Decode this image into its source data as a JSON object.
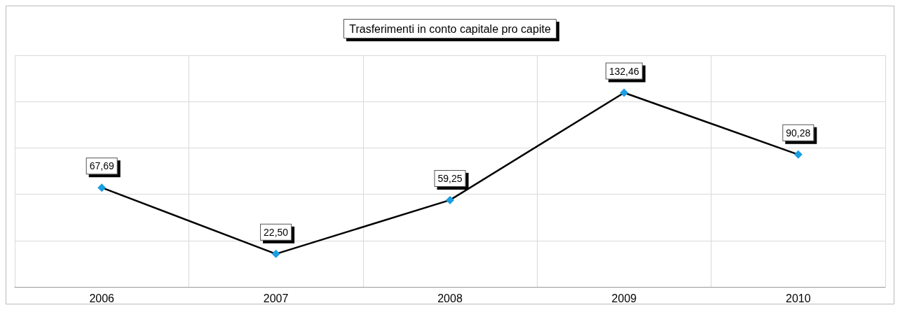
{
  "chart_data": {
    "type": "line",
    "title": "Trasferimenti in conto capitale pro capite",
    "categories": [
      "2006",
      "2007",
      "2008",
      "2009",
      "2010"
    ],
    "series": [
      {
        "color": "#000000",
        "colors": [
          "#1a9ee0",
          "#1a9ee0",
          "#1a9ee0",
          "#1a9ee0",
          "#1a9ee0"
        ],
        "values": [
          67.69,
          22.5,
          59.25,
          132.46,
          90.28
        ],
        "value_labels": [
          "67,69",
          "22,50",
          "59,25",
          "132,46",
          "90,28"
        ]
      }
    ],
    "ylim": [
      0,
      158
    ],
    "yticks": [
      {
        "value": 0,
        "label": null
      },
      {
        "value": 31.6,
        "label": null
      },
      {
        "value": 63.2,
        "label": null
      },
      {
        "value": 94.8,
        "label": null
      },
      {
        "value": 126.4,
        "label": null
      },
      {
        "value": 158,
        "label": null
      }
    ],
    "tick_labels": "x",
    "grid": true,
    "marker": "diamond",
    "line_style": "solid"
  }
}
